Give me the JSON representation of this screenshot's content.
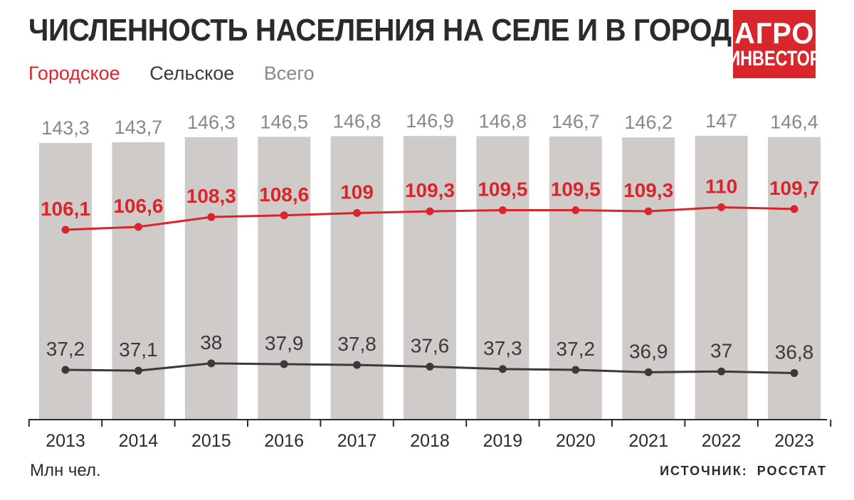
{
  "header": {
    "title": "ЧИСЛЕННОСТЬ НАСЕЛЕНИЯ НА СЕЛЕ И В ГОРОДЕ",
    "logo_line1": "АГРО",
    "logo_line2": "ИНВЕСТОР"
  },
  "footer": {
    "unit": "Млн чел.",
    "source_label": "ИСТОЧНИК:",
    "source_value": "РОССТАТ"
  },
  "colors": {
    "urban": "#d9262c",
    "rural": "#3a3a3a",
    "total_bar": "#cfcbc8",
    "total_label": "#8a8785",
    "axis": "#2b2b2b",
    "logo_bg": "#d9262c"
  },
  "chart_data": {
    "type": "bar",
    "title": "ЧИСЛЕННОСТЬ НАСЕЛЕНИЯ НА СЕЛЕ И В ГОРОДЕ",
    "xlabel": "",
    "ylabel": "Млн чел.",
    "ylim": [
      0,
      150
    ],
    "grid": false,
    "legend_position": "top-left",
    "categories": [
      "2013",
      "2014",
      "2015",
      "2016",
      "2017",
      "2018",
      "2019",
      "2020",
      "2021",
      "2022",
      "2023"
    ],
    "series": [
      {
        "name": "Городское",
        "kind": "line",
        "color": "#d9262c",
        "values": [
          106.1,
          106.6,
          108.3,
          108.6,
          109,
          109.3,
          109.5,
          109.5,
          109.3,
          110,
          109.7
        ],
        "labels": [
          "106,1",
          "106,6",
          "108,3",
          "108,6",
          "109",
          "109,3",
          "109,5",
          "109,5",
          "109,3",
          "110",
          "109,7"
        ]
      },
      {
        "name": "Сельское",
        "kind": "line",
        "color": "#3a3a3a",
        "values": [
          37.2,
          37.1,
          38,
          37.9,
          37.8,
          37.6,
          37.3,
          37.2,
          36.9,
          37,
          36.8
        ],
        "labels": [
          "37,2",
          "37,1",
          "38",
          "37,9",
          "37,8",
          "37,6",
          "37,3",
          "37,2",
          "36,9",
          "37",
          "36,8"
        ]
      },
      {
        "name": "Всего",
        "kind": "bar",
        "color": "#cfcbc8",
        "values": [
          143.3,
          143.7,
          146.3,
          146.5,
          146.8,
          146.9,
          146.8,
          146.7,
          146.2,
          147,
          146.4
        ],
        "labels": [
          "143,3",
          "143,7",
          "146,3",
          "146,5",
          "146,8",
          "146,9",
          "146,8",
          "146,7",
          "146,2",
          "147",
          "146,4"
        ]
      }
    ]
  }
}
